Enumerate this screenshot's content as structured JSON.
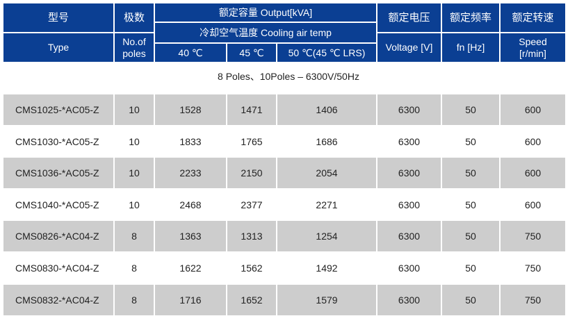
{
  "header": {
    "model_cn": "型号",
    "model_en": "Type",
    "poles_cn": "极数",
    "poles_en": "No.of poles",
    "output": "额定容量 Output[kVA]",
    "cooling": "冷却空气温度 Cooling air temp",
    "t40": "40 ℃",
    "t45": "45 ℃",
    "t50": "50 ℃(45 ℃ LRS)",
    "voltage_cn": "额定电压",
    "voltage_en": "Voltage [V]",
    "freq_cn": "额定频率",
    "freq_en": "fn [Hz]",
    "speed_cn": "额定转速",
    "speed_en": "Speed [r/min]"
  },
  "caption": "8 Poles、10Poles – 6300V/50Hz",
  "colors": {
    "header_bg": "#0b3f93",
    "row_alt": "#cdcdcd"
  },
  "rows": [
    [
      "CMS1025-*AC05-Z",
      "10",
      "1528",
      "1471",
      "1406",
      "6300",
      "50",
      "600"
    ],
    [
      "CMS1030-*AC05-Z",
      "10",
      "1833",
      "1765",
      "1686",
      "6300",
      "50",
      "600"
    ],
    [
      "CMS1036-*AC05-Z",
      "10",
      "2233",
      "2150",
      "2054",
      "6300",
      "50",
      "600"
    ],
    [
      "CMS1040-*AC05-Z",
      "10",
      "2468",
      "2377",
      "2271",
      "6300",
      "50",
      "600"
    ],
    [
      "CMS0826-*AC04-Z",
      "8",
      "1363",
      "1313",
      "1254",
      "6300",
      "50",
      "750"
    ],
    [
      "CMS0830-*AC04-Z",
      "8",
      "1622",
      "1562",
      "1492",
      "6300",
      "50",
      "750"
    ],
    [
      "CMS0832-*AC04-Z",
      "8",
      "1716",
      "1652",
      "1579",
      "6300",
      "50",
      "750"
    ]
  ]
}
